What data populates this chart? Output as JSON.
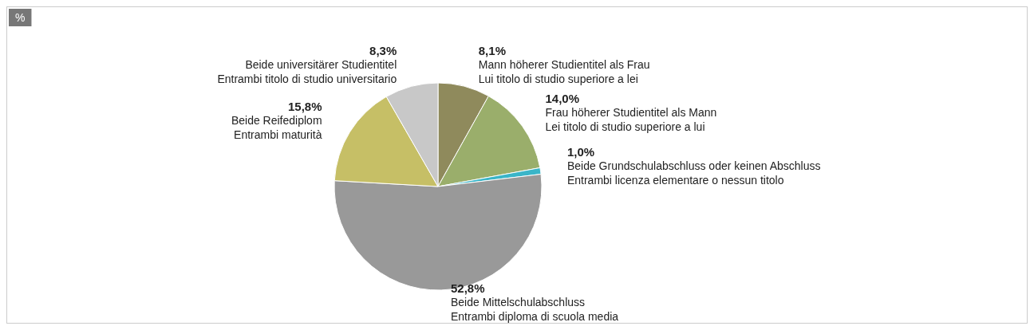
{
  "chart_data": {
    "type": "pie",
    "title": "%",
    "categories": [
      "Mann höherer Studientitel als Frau\nLui titolo di studio superiore a lei",
      "Frau höherer Studientitel als Mann\nLei titolo di studio superiore a lui",
      "Beide Grundschulabschluss oder keinen Abschluss\nEntrambi licenza elementare o nessun titolo",
      "Beide Mittelschulabschluss\nEntrambi diploma di scuola media",
      "Beide Reifediplom\nEntrambi maturità",
      "Beide universitärer Studientitel\nEntrambi titolo di studio universitario"
    ],
    "values": [
      8.1,
      14.0,
      1.0,
      52.8,
      15.8,
      8.3
    ],
    "value_labels": [
      "8,1%",
      "14,0%",
      "1,0%",
      "52,8%",
      "15,8%",
      "8,3%"
    ],
    "colors": [
      "#8f8a5c",
      "#9aae6b",
      "#3ab5c8",
      "#999999",
      "#c6bf66",
      "#c8c8c8"
    ],
    "legend": false
  }
}
